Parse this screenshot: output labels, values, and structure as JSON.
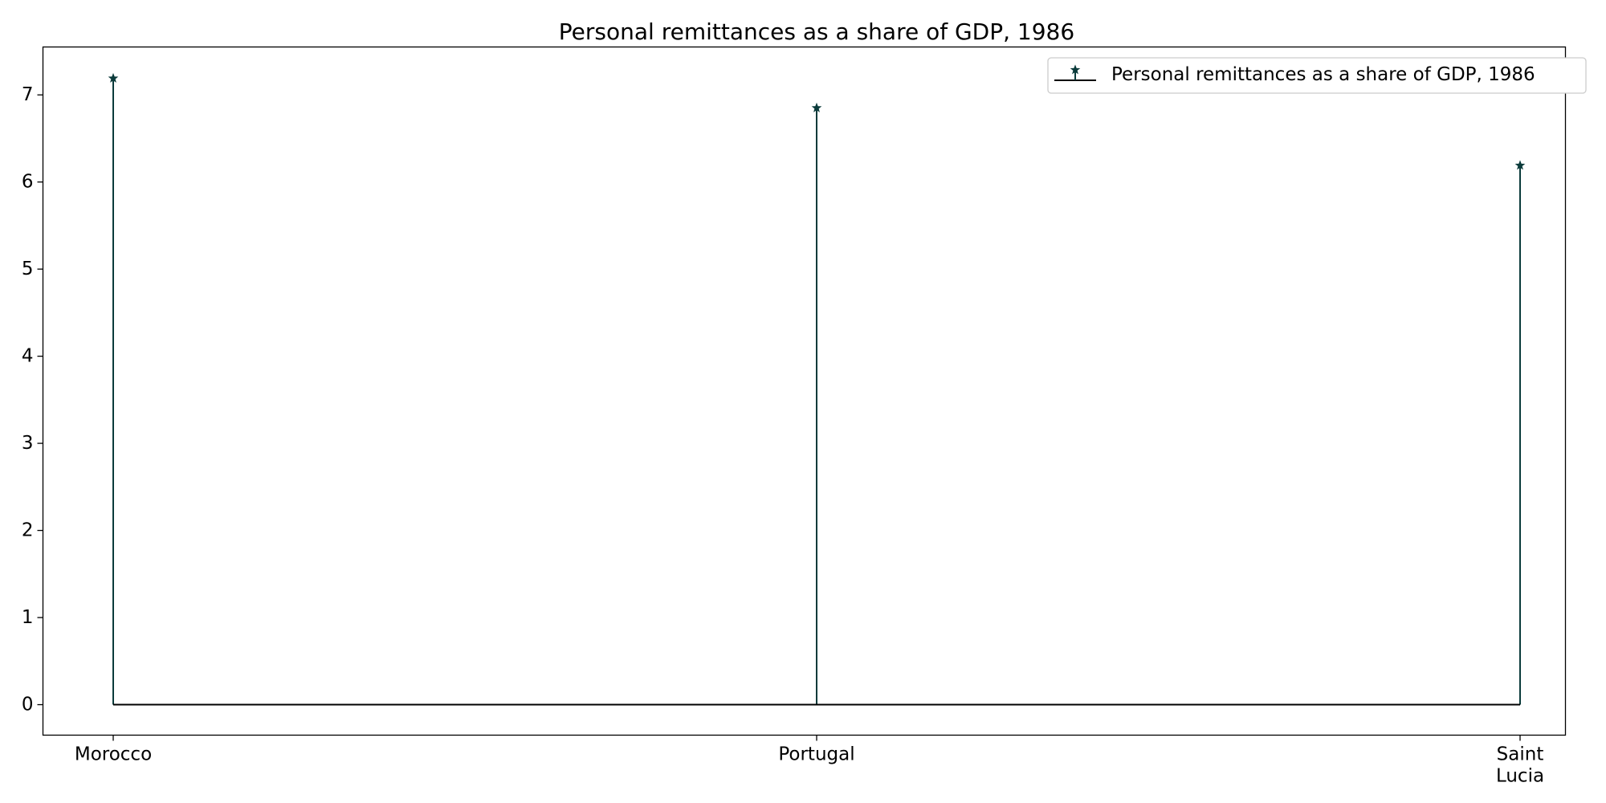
{
  "chart_data": {
    "type": "stem",
    "title": "Personal remittances as a share of GDP, 1986",
    "xlabel": "",
    "ylabel": "",
    "categories": [
      "Morocco",
      "Portugal",
      "Saint Lucia"
    ],
    "tick_labels": [
      [
        "Morocco"
      ],
      [
        "Portugal"
      ],
      [
        "Saint",
        "Lucia"
      ]
    ],
    "series": [
      {
        "name": "Personal remittances as a share of GDP, 1986",
        "values": [
          7.19,
          6.85,
          6.19
        ]
      }
    ],
    "ylim": [
      -0.35,
      7.55
    ],
    "yticks": [
      0,
      1,
      2,
      3,
      4,
      5,
      6,
      7
    ],
    "grid": false,
    "legend_position": "top-right",
    "marker": "star",
    "colors": {
      "stem": "#0b3b3b",
      "baseline": "#000000",
      "axes": "#000000"
    }
  }
}
